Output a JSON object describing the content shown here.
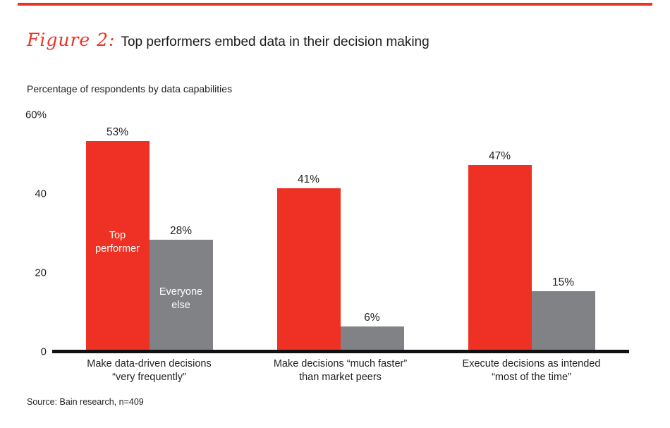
{
  "page": {
    "title_script": "Figure 2:",
    "title_rest": "Top performers embed data in their decision making",
    "source": "Source: Bain research, n=409",
    "accent_color": "#ee3124"
  },
  "chart_data": {
    "type": "bar",
    "title": "Figure 2: Top performers embed data in their decision making",
    "ylabel": "Percentage of respondents by data capabilities",
    "xlabel": "",
    "ylim": [
      0,
      60
    ],
    "grid": false,
    "legend_position": "inside-first-group-bars",
    "categories": [
      "Make data-driven decisions\n“very frequently”",
      "Make decisions “much faster”\nthan market peers",
      "Execute decisions as intended\n“most of the time”"
    ],
    "series": [
      {
        "name": "Top performer",
        "color": "#ee3124",
        "values": [
          53,
          41,
          47
        ],
        "value_labels": [
          "53%",
          "41%",
          "47%"
        ]
      },
      {
        "name": "Everyone else",
        "color": "#808285",
        "values": [
          28,
          6,
          15
        ],
        "value_labels": [
          "28%",
          "6%",
          "15%"
        ]
      }
    ],
    "y_axis": {
      "ticks": [
        {
          "label": "60%",
          "value": 60
        },
        {
          "label": "40",
          "value": 40
        },
        {
          "label": "20",
          "value": 20
        },
        {
          "label": "0",
          "value": 0
        }
      ]
    }
  }
}
